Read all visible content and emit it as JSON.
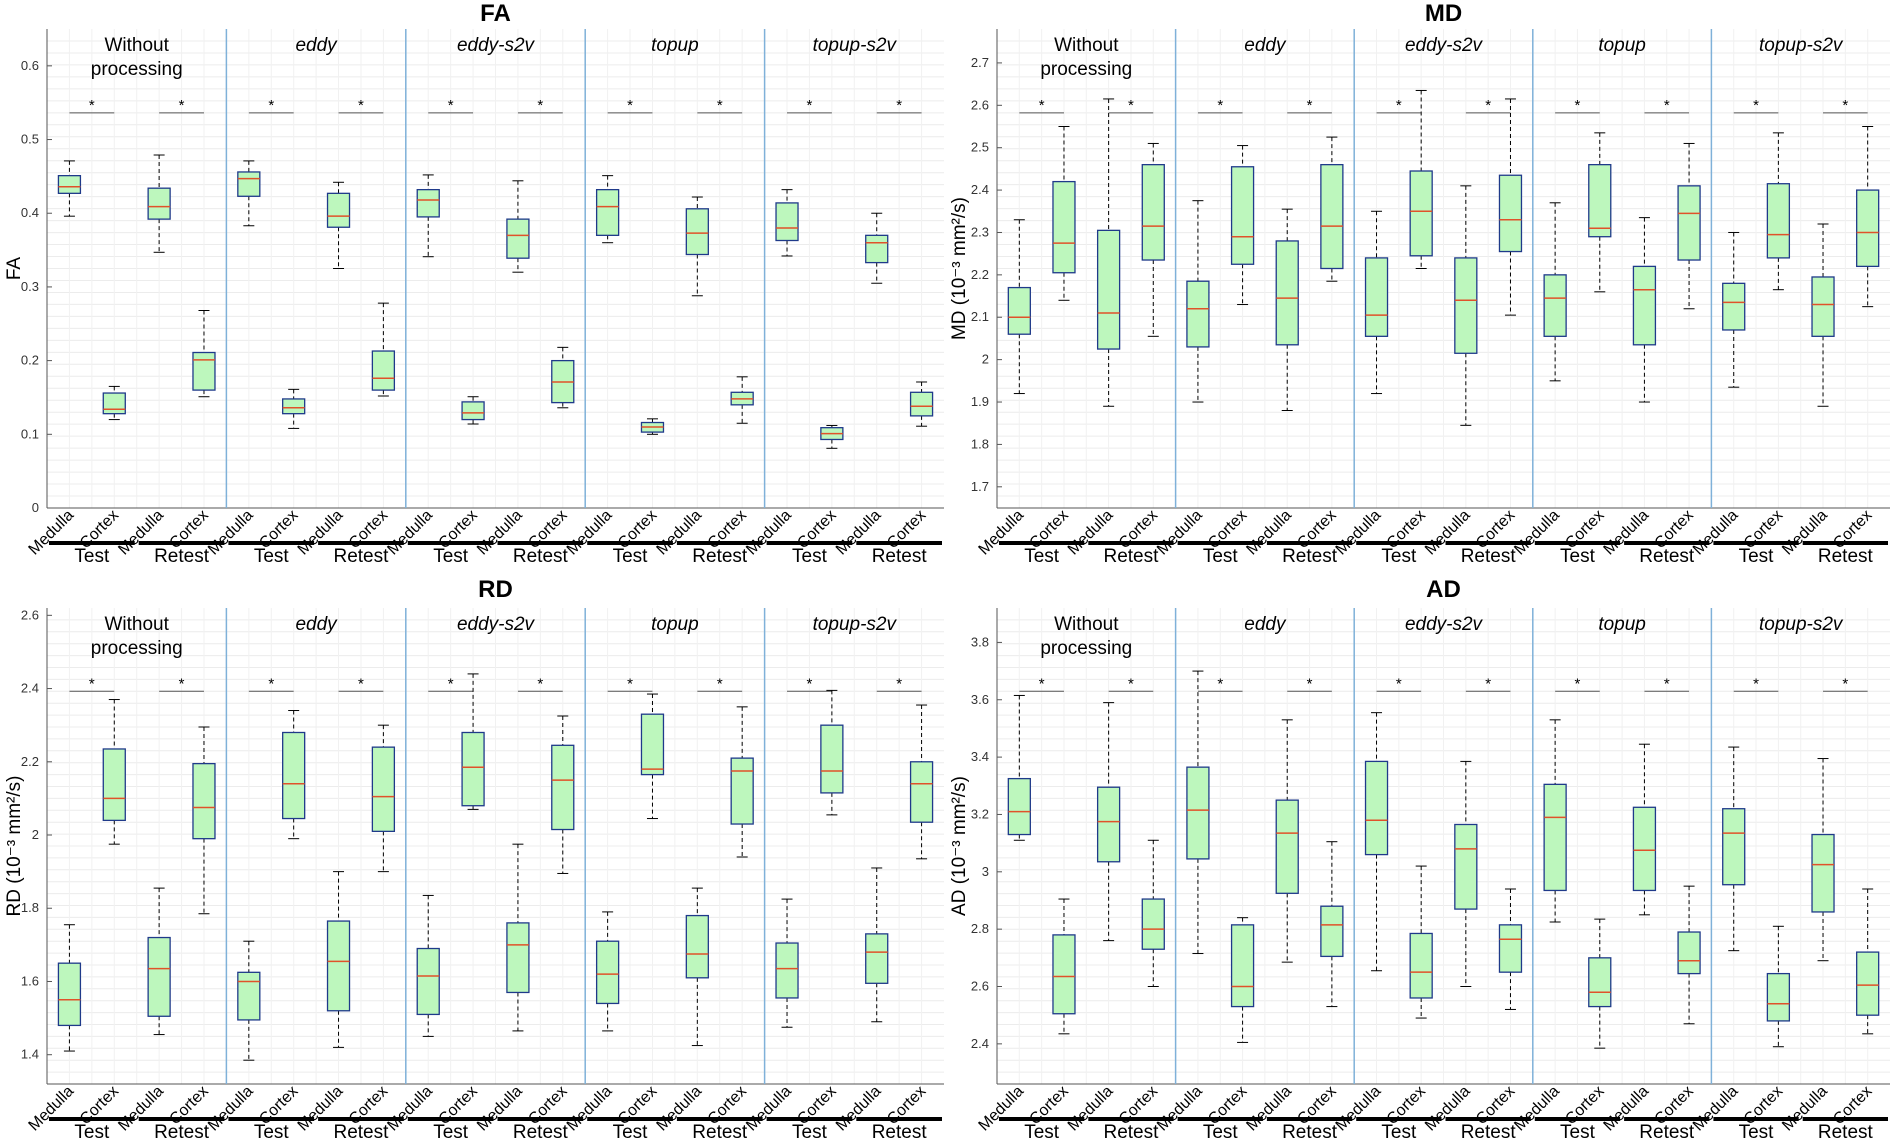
{
  "chart_data": [
    {
      "type": "box",
      "title": "FA",
      "ylabel": "FA",
      "ylim": [
        0,
        0.65
      ],
      "yticks": [
        "0",
        "0.1",
        "0.2",
        "0.3",
        "0.4",
        "0.5",
        "0.6"
      ],
      "groups": [
        "Without processing",
        "eddy",
        "eddy-s2v",
        "topup",
        "topup-s2v"
      ],
      "categories": [
        "Medulla",
        "Cortex",
        "Medulla",
        "Cortex"
      ],
      "sessions": [
        "Test",
        "Retest"
      ],
      "significance_marker": "*",
      "boxes": [
        [
          [
            0.396,
            0.427,
            0.436,
            0.451,
            0.471
          ],
          [
            0.12,
            0.128,
            0.134,
            0.156,
            0.165
          ],
          [
            0.347,
            0.392,
            0.409,
            0.434,
            0.479
          ],
          [
            0.151,
            0.16,
            0.201,
            0.211,
            0.268
          ]
        ],
        [
          [
            0.383,
            0.423,
            0.447,
            0.456,
            0.471
          ],
          [
            0.108,
            0.128,
            0.136,
            0.148,
            0.161
          ],
          [
            0.325,
            0.381,
            0.396,
            0.427,
            0.442
          ],
          [
            0.152,
            0.16,
            0.176,
            0.213,
            0.278
          ]
        ],
        [
          [
            0.341,
            0.395,
            0.418,
            0.432,
            0.452
          ],
          [
            0.114,
            0.12,
            0.129,
            0.144,
            0.151
          ],
          [
            0.32,
            0.339,
            0.37,
            0.392,
            0.444
          ],
          [
            0.136,
            0.143,
            0.171,
            0.2,
            0.218
          ]
        ],
        [
          [
            0.36,
            0.37,
            0.409,
            0.432,
            0.451
          ],
          [
            0.1,
            0.103,
            0.11,
            0.116,
            0.121
          ],
          [
            0.288,
            0.344,
            0.373,
            0.406,
            0.422
          ],
          [
            0.115,
            0.14,
            0.148,
            0.157,
            0.178
          ]
        ],
        [
          [
            0.342,
            0.363,
            0.38,
            0.414,
            0.432
          ],
          [
            0.081,
            0.093,
            0.101,
            0.109,
            0.112
          ],
          [
            0.305,
            0.333,
            0.36,
            0.37,
            0.4
          ],
          [
            0.111,
            0.125,
            0.138,
            0.157,
            0.171
          ]
        ]
      ]
    },
    {
      "type": "box",
      "title": "MD",
      "ylabel": "MD (10⁻³ mm²/s)",
      "ylim": [
        1.65,
        2.78
      ],
      "yticks": [
        "1.7",
        "1.8",
        "1.9",
        "2",
        "2.1",
        "2.2",
        "2.3",
        "2.4",
        "2.5",
        "2.6",
        "2.7"
      ],
      "groups": [
        "Without processing",
        "eddy",
        "eddy-s2v",
        "topup",
        "topup-s2v"
      ],
      "categories": [
        "Medulla",
        "Cortex",
        "Medulla",
        "Cortex"
      ],
      "sessions": [
        "Test",
        "Retest"
      ],
      "significance_marker": "*",
      "boxes": [
        [
          [
            1.92,
            2.06,
            2.1,
            2.17,
            2.33
          ],
          [
            2.14,
            2.205,
            2.275,
            2.42,
            2.55
          ],
          [
            1.89,
            2.025,
            2.11,
            2.305,
            2.615
          ],
          [
            2.055,
            2.235,
            2.315,
            2.46,
            2.51
          ]
        ],
        [
          [
            1.9,
            2.03,
            2.12,
            2.185,
            2.375
          ],
          [
            2.13,
            2.225,
            2.29,
            2.455,
            2.505
          ],
          [
            1.88,
            2.035,
            2.145,
            2.28,
            2.355
          ],
          [
            2.185,
            2.215,
            2.315,
            2.46,
            2.525
          ]
        ],
        [
          [
            1.92,
            2.055,
            2.105,
            2.24,
            2.35
          ],
          [
            2.215,
            2.245,
            2.35,
            2.445,
            2.635
          ],
          [
            1.845,
            2.015,
            2.14,
            2.24,
            2.41
          ],
          [
            2.105,
            2.255,
            2.33,
            2.435,
            2.615
          ]
        ],
        [
          [
            1.95,
            2.055,
            2.145,
            2.2,
            2.37
          ],
          [
            2.16,
            2.29,
            2.31,
            2.46,
            2.535
          ],
          [
            1.9,
            2.035,
            2.165,
            2.22,
            2.335
          ],
          [
            2.12,
            2.235,
            2.345,
            2.41,
            2.51
          ]
        ],
        [
          [
            1.935,
            2.07,
            2.135,
            2.18,
            2.3
          ],
          [
            2.165,
            2.24,
            2.295,
            2.415,
            2.535
          ],
          [
            1.89,
            2.055,
            2.13,
            2.195,
            2.32
          ],
          [
            2.125,
            2.22,
            2.3,
            2.4,
            2.55
          ]
        ]
      ]
    },
    {
      "type": "box",
      "title": "RD",
      "ylabel": "RD (10⁻³ mm²/s)",
      "ylim": [
        1.32,
        2.62
      ],
      "yticks": [
        "1.4",
        "1.6",
        "1.8",
        "2",
        "2.2",
        "2.4",
        "2.6"
      ],
      "groups": [
        "Without processing",
        "eddy",
        "eddy-s2v",
        "topup",
        "topup-s2v"
      ],
      "categories": [
        "Medulla",
        "Cortex",
        "Medulla",
        "Cortex"
      ],
      "sessions": [
        "Test",
        "Retest"
      ],
      "significance_marker": "*",
      "boxes": [
        [
          [
            1.41,
            1.48,
            1.55,
            1.65,
            1.755
          ],
          [
            1.975,
            2.04,
            2.1,
            2.235,
            2.37
          ],
          [
            1.455,
            1.505,
            1.635,
            1.72,
            1.855
          ],
          [
            1.785,
            1.99,
            2.075,
            2.195,
            2.295
          ]
        ],
        [
          [
            1.385,
            1.495,
            1.6,
            1.625,
            1.71
          ],
          [
            1.99,
            2.045,
            2.14,
            2.28,
            2.34
          ],
          [
            1.42,
            1.52,
            1.655,
            1.765,
            1.9
          ],
          [
            1.9,
            2.01,
            2.105,
            2.24,
            2.3
          ]
        ],
        [
          [
            1.45,
            1.51,
            1.615,
            1.69,
            1.835
          ],
          [
            2.07,
            2.08,
            2.185,
            2.28,
            2.44
          ],
          [
            1.465,
            1.57,
            1.7,
            1.76,
            1.975
          ],
          [
            1.895,
            2.015,
            2.15,
            2.245,
            2.325
          ]
        ],
        [
          [
            1.465,
            1.54,
            1.62,
            1.71,
            1.79
          ],
          [
            2.045,
            2.165,
            2.18,
            2.33,
            2.385
          ],
          [
            1.425,
            1.61,
            1.675,
            1.78,
            1.855
          ],
          [
            1.94,
            2.03,
            2.175,
            2.21,
            2.35
          ]
        ],
        [
          [
            1.475,
            1.555,
            1.635,
            1.705,
            1.825
          ],
          [
            2.055,
            2.115,
            2.175,
            2.3,
            2.395
          ],
          [
            1.49,
            1.595,
            1.68,
            1.73,
            1.91
          ],
          [
            1.935,
            2.035,
            2.14,
            2.2,
            2.355
          ]
        ]
      ]
    },
    {
      "type": "box",
      "title": "AD",
      "ylabel": "AD (10⁻³ mm²/s)",
      "ylim": [
        2.26,
        3.92
      ],
      "yticks": [
        "2.4",
        "2.6",
        "2.8",
        "3",
        "3.2",
        "3.4",
        "3.6",
        "3.8"
      ],
      "groups": [
        "Without processing",
        "eddy",
        "eddy-s2v",
        "topup",
        "topup-s2v"
      ],
      "categories": [
        "Medulla",
        "Cortex",
        "Medulla",
        "Cortex"
      ],
      "sessions": [
        "Test",
        "Retest"
      ],
      "significance_marker": "*",
      "boxes": [
        [
          [
            3.11,
            3.13,
            3.21,
            3.325,
            3.615
          ],
          [
            2.435,
            2.505,
            2.635,
            2.78,
            2.905
          ],
          [
            2.76,
            3.035,
            3.175,
            3.295,
            3.59
          ],
          [
            2.6,
            2.73,
            2.8,
            2.905,
            3.11
          ]
        ],
        [
          [
            2.715,
            3.045,
            3.215,
            3.365,
            3.7
          ],
          [
            2.405,
            2.53,
            2.6,
            2.815,
            2.84
          ],
          [
            2.685,
            2.925,
            3.135,
            3.25,
            3.53
          ],
          [
            2.53,
            2.705,
            2.815,
            2.88,
            3.105
          ]
        ],
        [
          [
            2.655,
            3.06,
            3.18,
            3.385,
            3.555
          ],
          [
            2.49,
            2.56,
            2.65,
            2.785,
            3.02
          ],
          [
            2.6,
            2.87,
            3.08,
            3.165,
            3.385
          ],
          [
            2.52,
            2.65,
            2.765,
            2.815,
            2.94
          ]
        ],
        [
          [
            2.825,
            2.935,
            3.19,
            3.305,
            3.53
          ],
          [
            2.385,
            2.53,
            2.58,
            2.7,
            2.835
          ],
          [
            2.85,
            2.935,
            3.075,
            3.225,
            3.445
          ],
          [
            2.47,
            2.645,
            2.69,
            2.79,
            2.95
          ]
        ],
        [
          [
            2.725,
            2.955,
            3.135,
            3.22,
            3.435
          ],
          [
            2.39,
            2.48,
            2.54,
            2.645,
            2.81
          ],
          [
            2.69,
            2.86,
            3.025,
            3.13,
            3.395
          ],
          [
            2.435,
            2.5,
            2.605,
            2.72,
            2.94
          ]
        ]
      ]
    }
  ]
}
